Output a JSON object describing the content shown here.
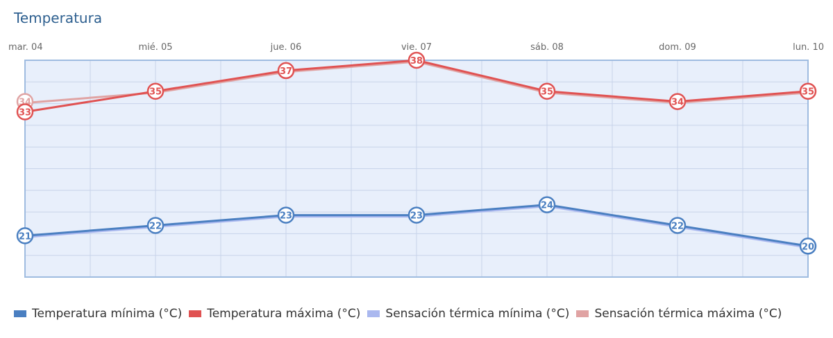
{
  "chart_data": {
    "type": "line",
    "title": "Temperatura",
    "categories": [
      "mar. 04",
      "mié. 05",
      "jue. 06",
      "vie. 07",
      "sáb. 08",
      "dom. 09",
      "lun. 10"
    ],
    "ylim": [
      17,
      38
    ],
    "grid": true,
    "legend_position": "bottom",
    "series": [
      {
        "name": "Temperatura mínima (°C)",
        "color": "#4a7fc1",
        "values": [
          21,
          22,
          23,
          23,
          24,
          22,
          20
        ],
        "labeled": true
      },
      {
        "name": "Temperatura máxima (°C)",
        "color": "#e05252",
        "values": [
          33,
          35,
          37,
          38,
          35,
          34,
          35
        ],
        "labeled": true
      },
      {
        "name": "Sensación térmica mínima (°C)",
        "color": "#aab8ef",
        "values": [
          21,
          22,
          23,
          23,
          24,
          22,
          20
        ],
        "labeled": false
      },
      {
        "name": "Sensación térmica máxima (°C)",
        "color": "#e0a3a3",
        "values": [
          34,
          35,
          37,
          38,
          35,
          34,
          35
        ],
        "labeled": false
      }
    ],
    "ghost_label": {
      "series": "Sensación térmica máxima (°C)",
      "index": 0,
      "value": 34
    }
  }
}
